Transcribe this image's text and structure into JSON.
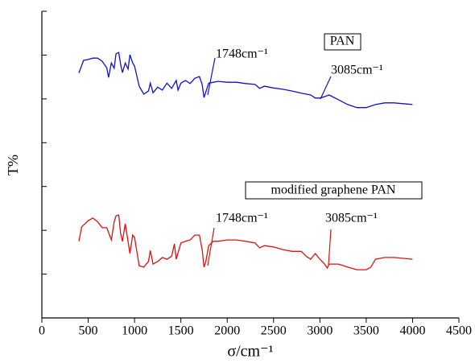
{
  "chart_data": {
    "type": "line",
    "xlabel": "σ/cm⁻¹",
    "ylabel": "T%",
    "xlim": [
      0,
      4500
    ],
    "xticks": [
      0,
      500,
      1000,
      1500,
      2000,
      2500,
      3000,
      3500,
      4000,
      4500
    ],
    "ylim": [
      0,
      70
    ],
    "yticks": [
      0,
      10,
      20,
      30,
      40,
      50,
      60,
      70
    ],
    "annotations": [
      "PAN",
      "1748cm⁻¹",
      "3085cm⁻¹",
      "modified graphene PAN",
      "1748cm⁻¹",
      "3085cm⁻¹"
    ],
    "series": [
      {
        "name": "PAN",
        "color": "#1010d0",
        "x": [
          400,
          450,
          500,
          550,
          600,
          650,
          700,
          720,
          750,
          780,
          800,
          830,
          850,
          870,
          900,
          930,
          950,
          980,
          1000,
          1050,
          1100,
          1150,
          1170,
          1200,
          1250,
          1300,
          1350,
          1400,
          1450,
          1470,
          1500,
          1550,
          1600,
          1650,
          1700,
          1730,
          1750,
          1800,
          1850,
          1900,
          2000,
          2100,
          2200,
          2300,
          2350,
          2400,
          2500,
          2600,
          2700,
          2800,
          2900,
          2950,
          3000,
          3050,
          3100,
          3200,
          3300,
          3400,
          3500,
          3600,
          3700,
          3800,
          4000
        ],
        "values": [
          55.9,
          58.8,
          59.0,
          59.3,
          59.3,
          58.6,
          57.1,
          54.9,
          58.2,
          57.0,
          60.3,
          60.6,
          57.9,
          56.0,
          58.2,
          56.8,
          60.1,
          58.2,
          57.5,
          52.9,
          51.1,
          51.8,
          53.6,
          51.4,
          52.7,
          52.0,
          53.6,
          52.4,
          54.2,
          52.0,
          53.6,
          54.2,
          53.5,
          54.7,
          55.1,
          53.3,
          50.3,
          53.6,
          53.8,
          54.0,
          53.8,
          53.8,
          53.5,
          53.3,
          52.4,
          52.9,
          52.5,
          52.2,
          51.8,
          51.3,
          50.9,
          50.2,
          50.2,
          50.5,
          50.9,
          49.8,
          48.7,
          48.0,
          48.0,
          48.7,
          49.1,
          49.1,
          48.7
        ]
      },
      {
        "name": "modified graphene PAN",
        "color": "#e01010",
        "x": [
          400,
          430,
          500,
          550,
          600,
          650,
          700,
          750,
          780,
          800,
          830,
          850,
          870,
          900,
          950,
          980,
          1000,
          1050,
          1100,
          1150,
          1170,
          1200,
          1250,
          1300,
          1350,
          1400,
          1430,
          1450,
          1500,
          1550,
          1600,
          1650,
          1700,
          1730,
          1750,
          1770,
          1800,
          1850,
          1900,
          2000,
          2100,
          2200,
          2300,
          2350,
          2400,
          2500,
          2600,
          2700,
          2800,
          2850,
          2900,
          2950,
          3000,
          3050,
          3080,
          3100,
          3200,
          3300,
          3400,
          3500,
          3550,
          3600,
          3700,
          3800,
          4000
        ],
        "values": [
          17.5,
          20.8,
          22.2,
          22.8,
          22.0,
          20.6,
          20.6,
          17.8,
          21.9,
          23.3,
          23.5,
          19.3,
          17.5,
          21.5,
          14.7,
          18.9,
          18.4,
          11.9,
          11.6,
          12.9,
          15.4,
          12.3,
          12.9,
          13.8,
          13.4,
          14.1,
          16.9,
          13.4,
          17.1,
          17.5,
          17.8,
          18.9,
          18.9,
          15.6,
          11.6,
          12.9,
          16.5,
          17.5,
          17.5,
          17.8,
          17.8,
          17.5,
          17.1,
          16.0,
          16.5,
          16.2,
          15.6,
          15.2,
          15.2,
          14.1,
          13.4,
          14.7,
          13.4,
          12.3,
          11.4,
          12.3,
          12.3,
          11.6,
          11.0,
          11.0,
          11.6,
          13.4,
          13.8,
          13.8,
          13.4
        ]
      }
    ]
  }
}
